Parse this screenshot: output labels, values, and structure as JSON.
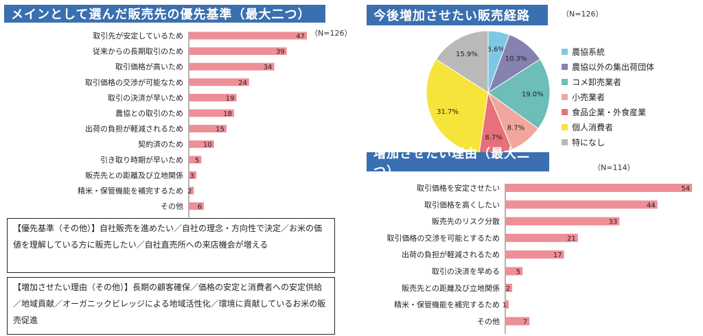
{
  "chart_data": [
    {
      "type": "bar",
      "title": "メインとして選んだ販売先の優先基準（最大二つ）",
      "n_label": "（N=126）",
      "bar_color": "#ee8e96",
      "categories": [
        "取引先が安定しているため",
        "従来からの長期取引のため",
        "取引価格が高いため",
        "取引価格の交渉が可能なため",
        "取引の決済が早いため",
        "農協との取引のため",
        "出荷の負担が軽減されるため",
        "契約済のため",
        "引き取り時期が早いため",
        "販売先との距離及び立地関係",
        "精米・保管機能を補完するため",
        "その他"
      ],
      "values": [
        47,
        39,
        34,
        24,
        19,
        18,
        15,
        10,
        5,
        3,
        2,
        6
      ],
      "xlim": [
        0,
        47
      ]
    },
    {
      "type": "pie",
      "title": "今後増加させたい販売経路",
      "n_label": "（N=126）",
      "categories": [
        "農協系統",
        "農協以外の集出荷団体",
        "コメ卸売業者",
        "小売業者",
        "食品企業・外食産業",
        "個人消費者",
        "特になし"
      ],
      "values": [
        5.6,
        10.3,
        19.0,
        8.7,
        8.7,
        31.7,
        15.9
      ],
      "labels": [
        "5.6%",
        "10.3%",
        "19.0%",
        "8.7%",
        "8.7%",
        "31.7%",
        "15.9%"
      ],
      "colors": [
        "#7ec8e3",
        "#8582b0",
        "#6dbdb8",
        "#f1a79e",
        "#e7707a",
        "#f7e43a",
        "#b9b9b9"
      ]
    },
    {
      "type": "bar",
      "title": "増加させたい理由（最大二つ）",
      "n_label": "（N=114）",
      "bar_color": "#ee8e96",
      "categories": [
        "取引価格を安定させたい",
        "取引価格を高くしたい",
        "販売先のリスク分散",
        "取引価格の交渉を可能とするため",
        "出荷の負担が軽減されるため",
        "取引の決済を早める",
        "販売先との距離及び立地関係",
        "精米・保管機能を補完するため",
        "その他"
      ],
      "values": [
        54,
        44,
        33,
        21,
        17,
        5,
        2,
        1,
        7
      ],
      "xlim": [
        0,
        54
      ]
    }
  ],
  "notes": {
    "criteria_other": "【優先基準（その他）】自社販売を進めたい／自社の理念・方向性で決定／お米の価値を理解している方に販売したい／自社直売所への来店機会が増える",
    "reason_other": "【増加させたい理由（その他）】長期の顧客確保／価格の安定と消費者への安定供給／地域貢献／オーガニックビレッジによる地域活性化／環境に貢献しているお米の販売促進"
  }
}
